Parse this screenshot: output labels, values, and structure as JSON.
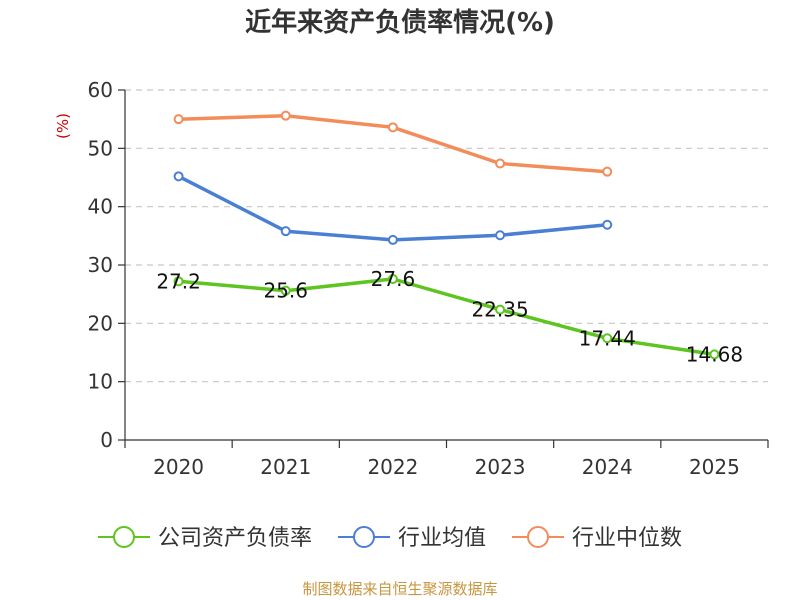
{
  "chart_data": {
    "type": "line",
    "title": "近年来资产负债率情况(%)",
    "ylabel": "(%)",
    "xlabel": "",
    "categories": [
      "2020",
      "2021",
      "2022",
      "2023",
      "2024",
      "2025"
    ],
    "ylim": [
      0,
      60
    ],
    "yticks": [
      0,
      10,
      20,
      30,
      40,
      50,
      60
    ],
    "grid": true,
    "legend_position": "bottom",
    "series": [
      {
        "name": "公司资产负债率",
        "color": "#5dc420",
        "values": [
          27.2,
          25.6,
          27.6,
          22.35,
          17.44,
          14.68
        ],
        "data_labels": [
          "27.2",
          "25.6",
          "27.6",
          "22.35",
          "17.44",
          "14.68"
        ]
      },
      {
        "name": "行业均值",
        "color": "#4a7fd4",
        "values": [
          45.2,
          35.8,
          34.3,
          35.1,
          36.9,
          null
        ]
      },
      {
        "name": "行业中位数",
        "color": "#f28c5a",
        "values": [
          55.0,
          55.6,
          53.6,
          47.4,
          46.0,
          null
        ]
      }
    ],
    "source": "制图数据来自恒生聚源数据库"
  }
}
